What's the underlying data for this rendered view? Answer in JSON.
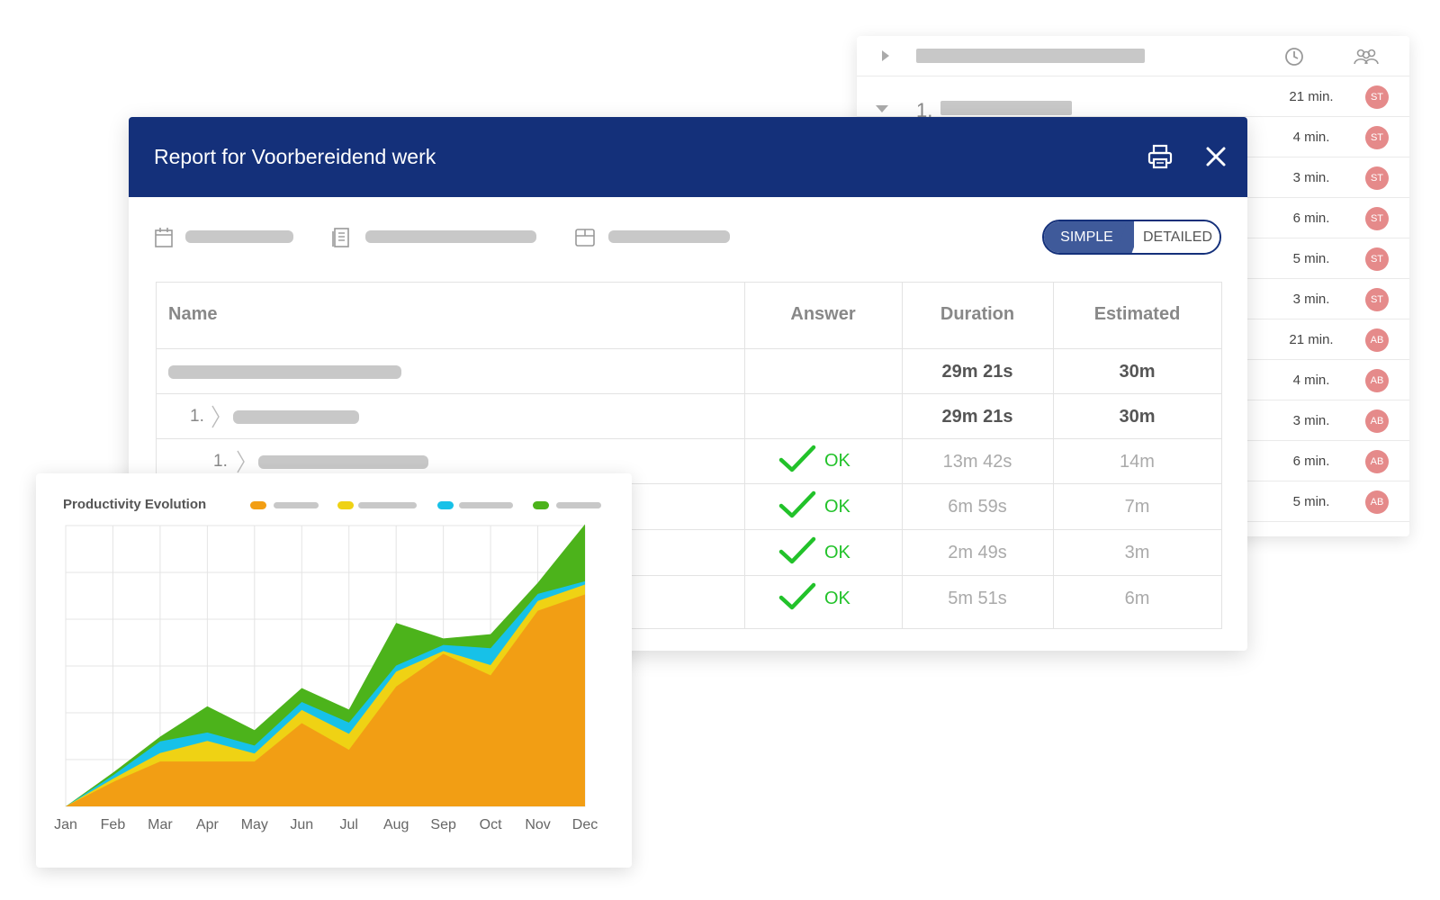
{
  "back_panel": {
    "rows": [
      {
        "duration": "21 min.",
        "initials": "ST"
      },
      {
        "duration": "4 min.",
        "initials": "ST"
      },
      {
        "duration": "3 min.",
        "initials": "ST"
      },
      {
        "duration": "6 min.",
        "initials": "ST"
      },
      {
        "duration": "5 min.",
        "initials": "ST"
      },
      {
        "duration": "3 min.",
        "initials": "ST"
      },
      {
        "duration": "21 min.",
        "initials": "AB"
      },
      {
        "duration": "4 min.",
        "initials": "AB"
      },
      {
        "duration": "3 min.",
        "initials": "AB"
      },
      {
        "duration": "6 min.",
        "initials": "AB"
      },
      {
        "duration": "5 min.",
        "initials": "AB"
      }
    ],
    "first_item_number": "1."
  },
  "modal": {
    "title": "Report for Voorbereidend werk",
    "toggle": {
      "simple": "SIMPLE",
      "detailed": "DETAILED",
      "selected": "SIMPLE"
    },
    "table": {
      "headers": {
        "name": "Name",
        "answer": "Answer",
        "duration": "Duration",
        "estimated": "Estimated"
      },
      "rows": [
        {
          "number": "",
          "answer": "",
          "duration": "29m 21s",
          "estimated": "30m"
        },
        {
          "number": "1.",
          "answer": "",
          "duration": "29m 21s",
          "estimated": "30m"
        },
        {
          "number": "1.",
          "answer": "OK",
          "duration": "13m 42s",
          "estimated": "14m"
        },
        {
          "number": "",
          "answer": "OK",
          "duration": "6m 59s",
          "estimated": "7m"
        },
        {
          "number": "",
          "answer": "OK",
          "duration": "2m 49s",
          "estimated": "3m"
        },
        {
          "number": "",
          "answer": "OK",
          "duration": "5m 51s",
          "estimated": "6m"
        }
      ]
    }
  },
  "colors": {
    "header_blue": "#14307a",
    "ok_green": "#22c22a",
    "avatar_red": "#e58a8a",
    "series_orange": "#f29e14",
    "series_yellow": "#efd214",
    "series_blue": "#17c1e8",
    "series_green": "#4cb31b"
  },
  "chart_data": {
    "type": "area",
    "stacked": true,
    "title": "Productivity Evolution",
    "categories": [
      "Jan",
      "Feb",
      "Mar",
      "Apr",
      "May",
      "Jun",
      "Jul",
      "Aug",
      "Sep",
      "Oct",
      "Nov",
      "Dec"
    ],
    "ylim": [
      0,
      6
    ],
    "grid": true,
    "legend_position": "top-right",
    "series": [
      {
        "name": "",
        "color": "#f29e14",
        "values": [
          0,
          0.52,
          0.96,
          0.96,
          0.96,
          1.78,
          1.21,
          2.56,
          3.26,
          2.8,
          4.18,
          4.53
        ]
      },
      {
        "name": "",
        "color": "#efd214",
        "values": [
          0,
          0.07,
          0.18,
          0.44,
          0.17,
          0.28,
          0.34,
          0.32,
          0.06,
          0.22,
          0.21,
          0.21
        ]
      },
      {
        "name": "",
        "color": "#17c1e8",
        "values": [
          0,
          0.07,
          0.25,
          0.18,
          0.17,
          0.17,
          0.24,
          0.13,
          0.13,
          0.36,
          0.15,
          0.07
        ]
      },
      {
        "name": "",
        "color": "#4cb31b",
        "values": [
          0,
          0.06,
          0.1,
          0.56,
          0.33,
          0.3,
          0.28,
          0.91,
          0.14,
          0.3,
          0.24,
          1.22
        ]
      }
    ]
  }
}
